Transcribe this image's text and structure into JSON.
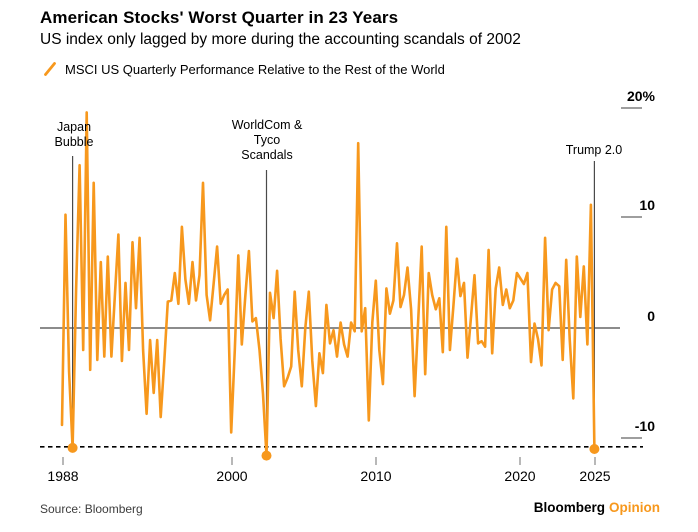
{
  "chart_data": {
    "type": "line",
    "title": "American Stocks' Worst Quarter in 23 Years",
    "subtitle": "US index only lagged by more during the accounting scandals of 2002",
    "legend": "MSCI US Quarterly Performance Relative to the Rest of the World",
    "frequency": "quarterly",
    "unit": "%",
    "x_axis_ticks": [
      "1988",
      "2000",
      "2010",
      "2020",
      "2025"
    ],
    "y_axis_ticks": [
      "20%",
      "10",
      "0",
      "-10"
    ],
    "ylim": [
      -13,
      21
    ],
    "grid": false,
    "legend_position": "top-left",
    "line_color": "#F7981D",
    "values": [
      -8.8,
      10.3,
      -4.0,
      -10.9,
      3.5,
      14.8,
      -2.0,
      19.6,
      -3.8,
      13.2,
      -2.9,
      6.0,
      -2.6,
      6.5,
      -2.6,
      3.0,
      8.5,
      -3.0,
      4.1,
      -2.0,
      7.8,
      1.8,
      8.2,
      -2.0,
      -7.8,
      -1.1,
      -5.9,
      -1.1,
      -8.1,
      -3.0,
      2.4,
      2.5,
      5.0,
      2.2,
      9.2,
      4.4,
      2.2,
      6.0,
      2.5,
      4.8,
      13.2,
      3.0,
      0.7,
      4.0,
      7.4,
      2.2,
      3.0,
      3.5,
      -9.5,
      -2.0,
      6.6,
      -1.5,
      3.0,
      7.0,
      0.6,
      0.9,
      -2.0,
      -6.0,
      -11.6,
      3.2,
      0.9,
      5.2,
      -1.0,
      -5.3,
      -4.5,
      -3.5,
      3.3,
      -2.0,
      -5.3,
      0.0,
      3.3,
      -3.0,
      -7.1,
      -2.3,
      -4.1,
      2.1,
      -1.4,
      -0.2,
      -2.6,
      0.5,
      -1.5,
      -2.6,
      0.5,
      -0.3,
      16.8,
      -0.3,
      1.8,
      -8.4,
      0.5,
      4.3,
      -2.0,
      -5.1,
      3.6,
      1.3,
      2.5,
      7.7,
      1.9,
      3.0,
      5.5,
      1.7,
      -6.2,
      0.5,
      7.4,
      -4.2,
      5.0,
      3.0,
      1.7,
      2.7,
      -2.2,
      9.2,
      -2.0,
      2.0,
      6.3,
      2.9,
      4.1,
      -2.7,
      1.0,
      4.8,
      -1.4,
      -1.2,
      -1.7,
      7.1,
      -2.3,
      3.6,
      5.5,
      2.1,
      3.5,
      1.8,
      2.5,
      5.0,
      4.5,
      4.0,
      5.0,
      -3.1,
      0.4,
      -1.0,
      -3.4,
      8.2,
      -0.2,
      3.5,
      4.1,
      3.8,
      -2.9,
      6.2,
      -1.0,
      -6.4,
      6.5,
      1.0,
      5.6,
      -1.5,
      11.2,
      -11.0
    ],
    "annotations": [
      {
        "label": "Japan\nBubble",
        "index": 3
      },
      {
        "label": "WorldCom &\nTyco\nScandals",
        "index": 58
      },
      {
        "label": "Trump 2.0",
        "index": 151
      }
    ],
    "reference_line": {
      "style": "dashed",
      "value": -10.8
    }
  },
  "footer": {
    "source": "Source: Bloomberg",
    "brand": "Bloomberg",
    "brand_suffix": "Opinion"
  }
}
